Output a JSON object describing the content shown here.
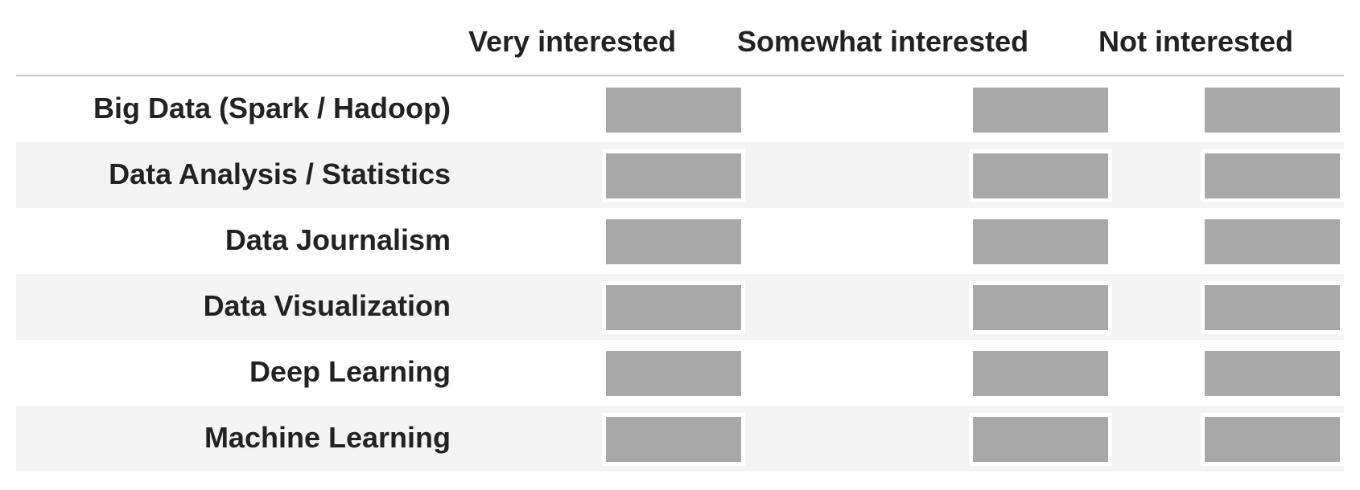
{
  "matrix": {
    "columns": [
      "Very interested",
      "Somewhat interested",
      "Not interested"
    ],
    "rows": [
      {
        "label": "Big Data (Spark / Hadoop)"
      },
      {
        "label": "Data Analysis / Statistics"
      },
      {
        "label": "Data Journalism"
      },
      {
        "label": "Data Visualization"
      },
      {
        "label": "Deep Learning"
      },
      {
        "label": "Machine Learning"
      }
    ]
  },
  "colors": {
    "choice_fill": "#a8a8a8",
    "alt_row_bg": "#f4f4f4",
    "header_rule": "#c4c4c4",
    "text": "#222222"
  }
}
